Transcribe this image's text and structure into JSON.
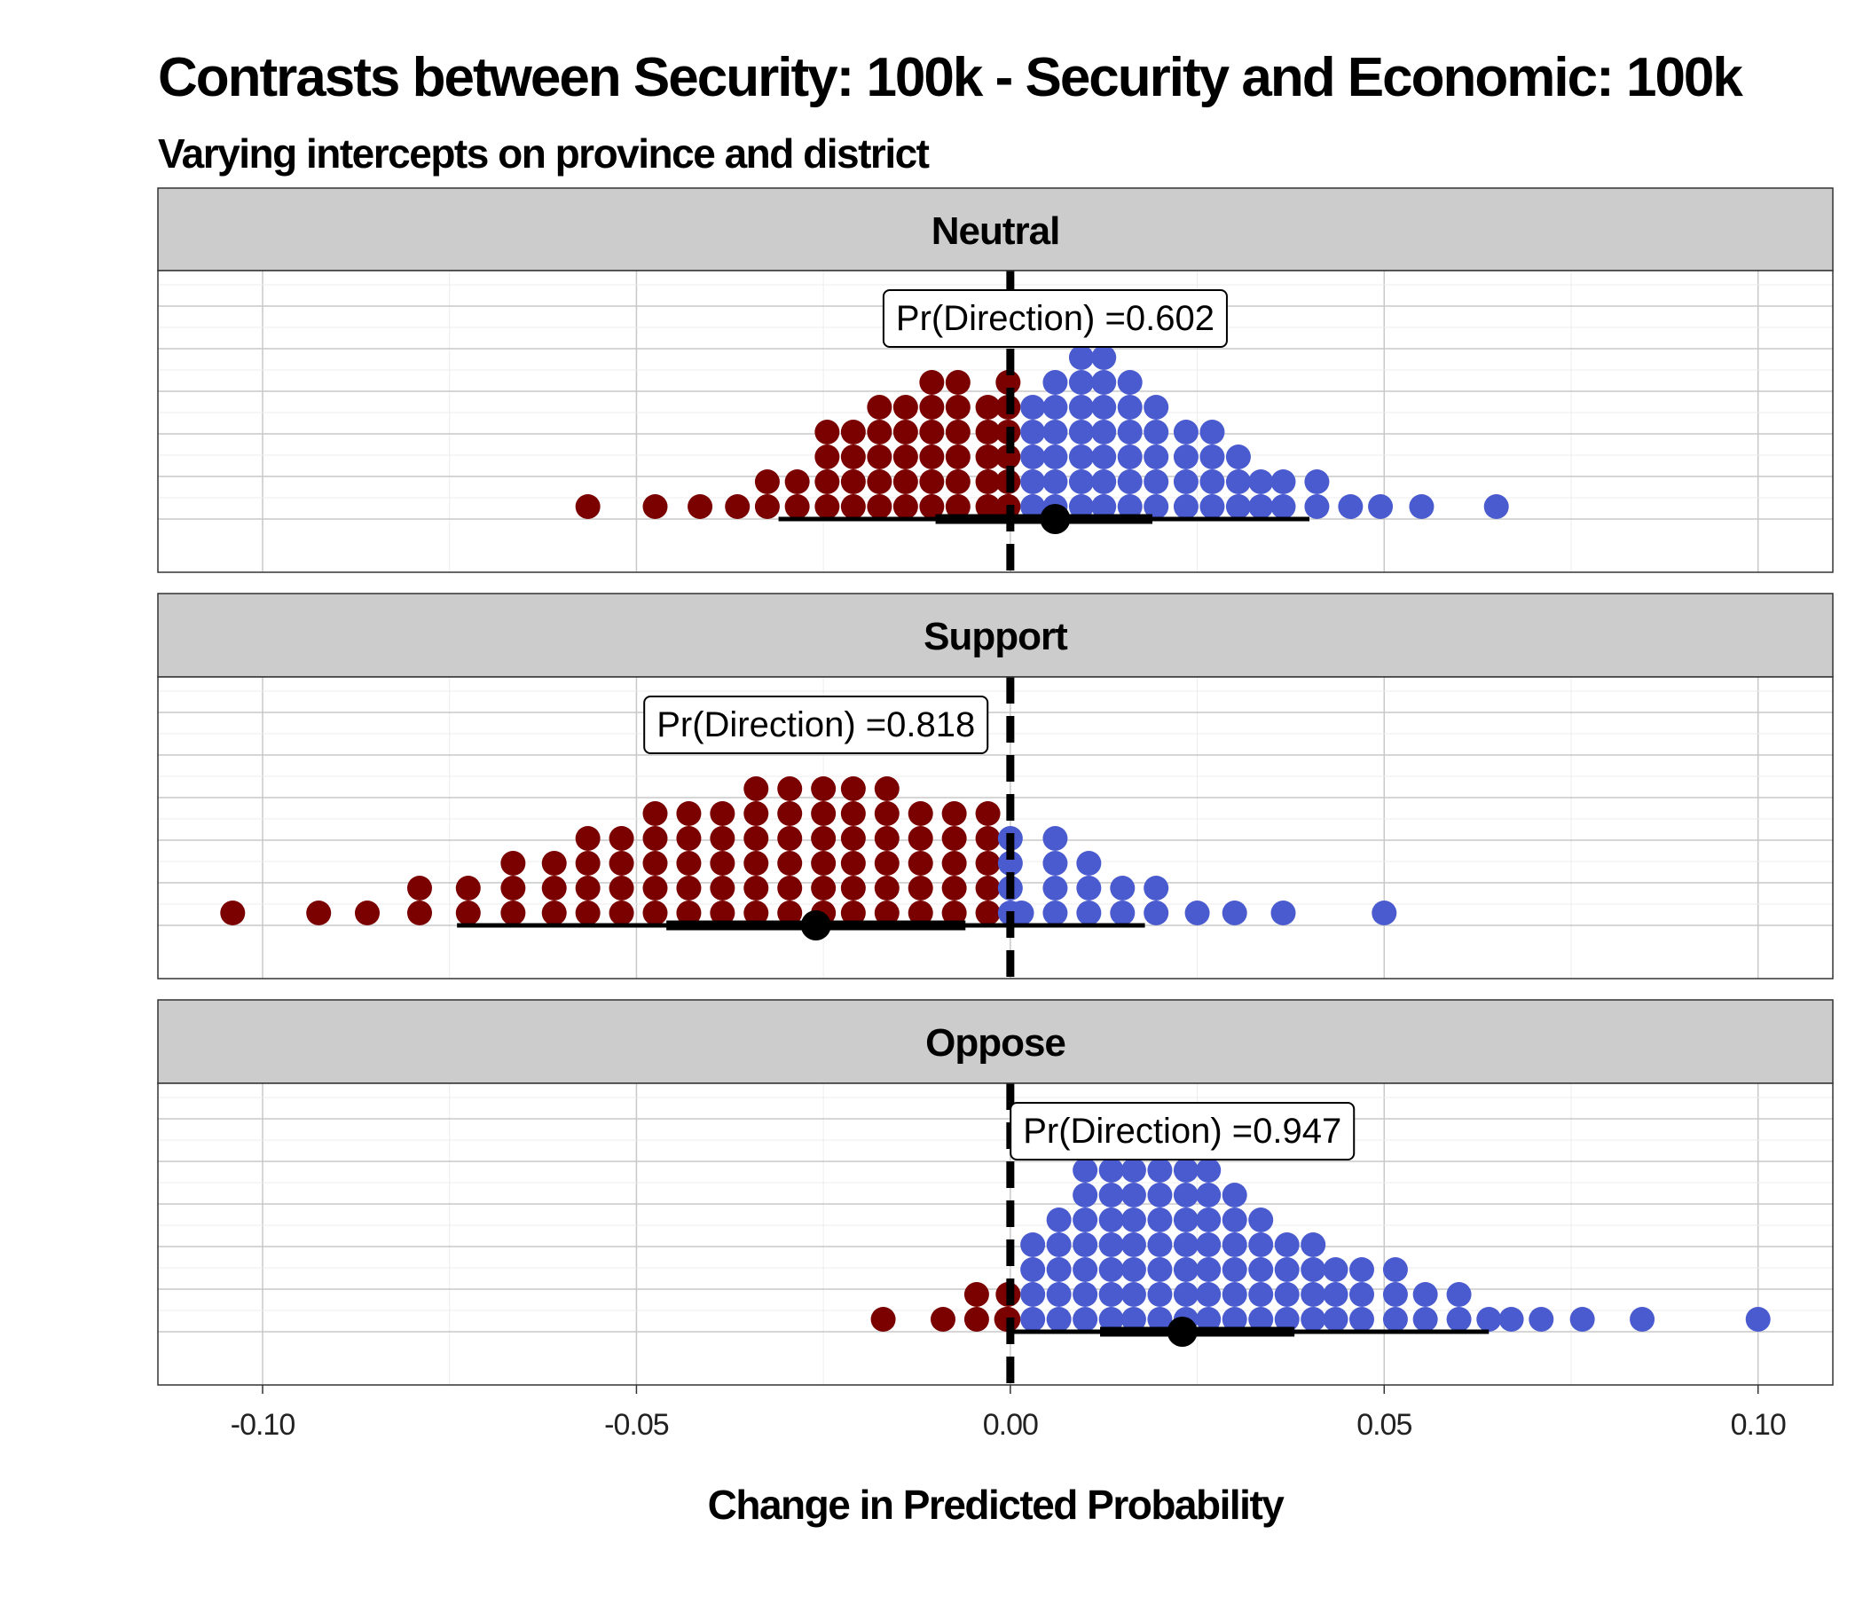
{
  "chart_data": {
    "type": "dotplot",
    "title": "Contrasts between Security: 100k - Security and Economic: 100k",
    "subtitle": "Varying intercepts on province and district",
    "xlabel": "Change in Predicted Probability",
    "xlim": [
      -0.114,
      0.11
    ],
    "xticks": [
      "-0.10",
      "-0.05",
      "0.00",
      "0.05",
      "0.10"
    ],
    "xtick_values": [
      -0.1,
      -0.05,
      0.0,
      0.05,
      0.1
    ],
    "reference_line": 0.0,
    "grid": true,
    "colors": {
      "negative": "#7b0000",
      "positive": "#4a5bcf",
      "strip": "#cccccc",
      "interval": "#000000"
    },
    "panels": [
      {
        "name": "Neutral",
        "label": "Pr(Direction) =0.602",
        "label_x": 0.006,
        "point_estimate": 0.006,
        "interval_inner": [
          -0.01,
          0.019
        ],
        "interval_outer": [
          -0.031,
          0.04
        ],
        "dot_columns": [
          {
            "x": -0.0565,
            "count": 1
          },
          {
            "x": -0.0475,
            "count": 1
          },
          {
            "x": -0.0415,
            "count": 1
          },
          {
            "x": -0.0365,
            "count": 1
          },
          {
            "x": -0.0325,
            "count": 2
          },
          {
            "x": -0.0285,
            "count": 2
          },
          {
            "x": -0.0245,
            "count": 4
          },
          {
            "x": -0.021,
            "count": 4
          },
          {
            "x": -0.0175,
            "count": 5
          },
          {
            "x": -0.014,
            "count": 5
          },
          {
            "x": -0.0105,
            "count": 6
          },
          {
            "x": -0.007,
            "count": 6
          },
          {
            "x": -0.003,
            "count": 5
          },
          {
            "x": -0.0003,
            "count": 1
          },
          {
            "x": -0.0003,
            "count": 6
          },
          {
            "x": 0.003,
            "count": 5
          },
          {
            "x": 0.006,
            "count": 6
          },
          {
            "x": 0.0095,
            "count": 7
          },
          {
            "x": 0.0125,
            "count": 8
          },
          {
            "x": 0.016,
            "count": 6
          },
          {
            "x": 0.0195,
            "count": 5
          },
          {
            "x": 0.0235,
            "count": 4
          },
          {
            "x": 0.027,
            "count": 4
          },
          {
            "x": 0.0305,
            "count": 3
          },
          {
            "x": 0.0335,
            "count": 2
          },
          {
            "x": 0.0365,
            "count": 2
          },
          {
            "x": 0.041,
            "count": 2
          },
          {
            "x": 0.0455,
            "count": 1
          },
          {
            "x": 0.0495,
            "count": 1
          },
          {
            "x": 0.055,
            "count": 1
          },
          {
            "x": 0.065,
            "count": 1
          }
        ]
      },
      {
        "name": "Support",
        "label": "Pr(Direction) =0.818",
        "label_x": -0.026,
        "point_estimate": -0.026,
        "interval_inner": [
          -0.046,
          -0.006
        ],
        "interval_outer": [
          -0.074,
          0.018
        ],
        "dot_columns": [
          {
            "x": -0.104,
            "count": 1
          },
          {
            "x": -0.0925,
            "count": 1
          },
          {
            "x": -0.086,
            "count": 1
          },
          {
            "x": -0.079,
            "count": 2
          },
          {
            "x": -0.0725,
            "count": 2
          },
          {
            "x": -0.0665,
            "count": 3
          },
          {
            "x": -0.061,
            "count": 3
          },
          {
            "x": -0.0565,
            "count": 4
          },
          {
            "x": -0.052,
            "count": 4
          },
          {
            "x": -0.0475,
            "count": 5
          },
          {
            "x": -0.043,
            "count": 5
          },
          {
            "x": -0.0385,
            "count": 5
          },
          {
            "x": -0.034,
            "count": 6
          },
          {
            "x": -0.0295,
            "count": 6
          },
          {
            "x": -0.025,
            "count": 6
          },
          {
            "x": -0.021,
            "count": 6
          },
          {
            "x": -0.0165,
            "count": 6
          },
          {
            "x": -0.012,
            "count": 5
          },
          {
            "x": -0.0075,
            "count": 5
          },
          {
            "x": -0.003,
            "count": 5
          },
          {
            "x": 0.0015,
            "count": 1
          },
          {
            "x": 0.0,
            "count": 4
          },
          {
            "x": 0.006,
            "count": 4
          },
          {
            "x": 0.0105,
            "count": 3
          },
          {
            "x": 0.015,
            "count": 2
          },
          {
            "x": 0.0195,
            "count": 2
          },
          {
            "x": 0.025,
            "count": 1
          },
          {
            "x": 0.03,
            "count": 1
          },
          {
            "x": 0.0365,
            "count": 1
          },
          {
            "x": 0.05,
            "count": 1
          }
        ]
      },
      {
        "name": "Oppose",
        "label": "Pr(Direction) =0.947",
        "label_x": 0.023,
        "point_estimate": 0.023,
        "interval_inner": [
          0.012,
          0.038
        ],
        "interval_outer": [
          0.0,
          0.064
        ],
        "dot_columns": [
          {
            "x": -0.017,
            "count": 1
          },
          {
            "x": -0.009,
            "count": 1
          },
          {
            "x": -0.0045,
            "count": 2
          },
          {
            "x": -0.0005,
            "count": 1
          },
          {
            "x": -0.0003,
            "count": 2
          },
          {
            "x": 0.003,
            "count": 4
          },
          {
            "x": 0.0065,
            "count": 5
          },
          {
            "x": 0.01,
            "count": 7
          },
          {
            "x": 0.0135,
            "count": 7
          },
          {
            "x": 0.0165,
            "count": 8
          },
          {
            "x": 0.02,
            "count": 8
          },
          {
            "x": 0.0235,
            "count": 7
          },
          {
            "x": 0.0265,
            "count": 7
          },
          {
            "x": 0.03,
            "count": 6
          },
          {
            "x": 0.0335,
            "count": 5
          },
          {
            "x": 0.037,
            "count": 4
          },
          {
            "x": 0.0405,
            "count": 4
          },
          {
            "x": 0.0435,
            "count": 3
          },
          {
            "x": 0.047,
            "count": 3
          },
          {
            "x": 0.0515,
            "count": 3
          },
          {
            "x": 0.0555,
            "count": 2
          },
          {
            "x": 0.06,
            "count": 2
          },
          {
            "x": 0.064,
            "count": 1
          },
          {
            "x": 0.067,
            "count": 1
          },
          {
            "x": 0.071,
            "count": 1
          },
          {
            "x": 0.0765,
            "count": 1
          },
          {
            "x": 0.0845,
            "count": 1
          },
          {
            "x": 0.1,
            "count": 1
          }
        ]
      }
    ]
  }
}
